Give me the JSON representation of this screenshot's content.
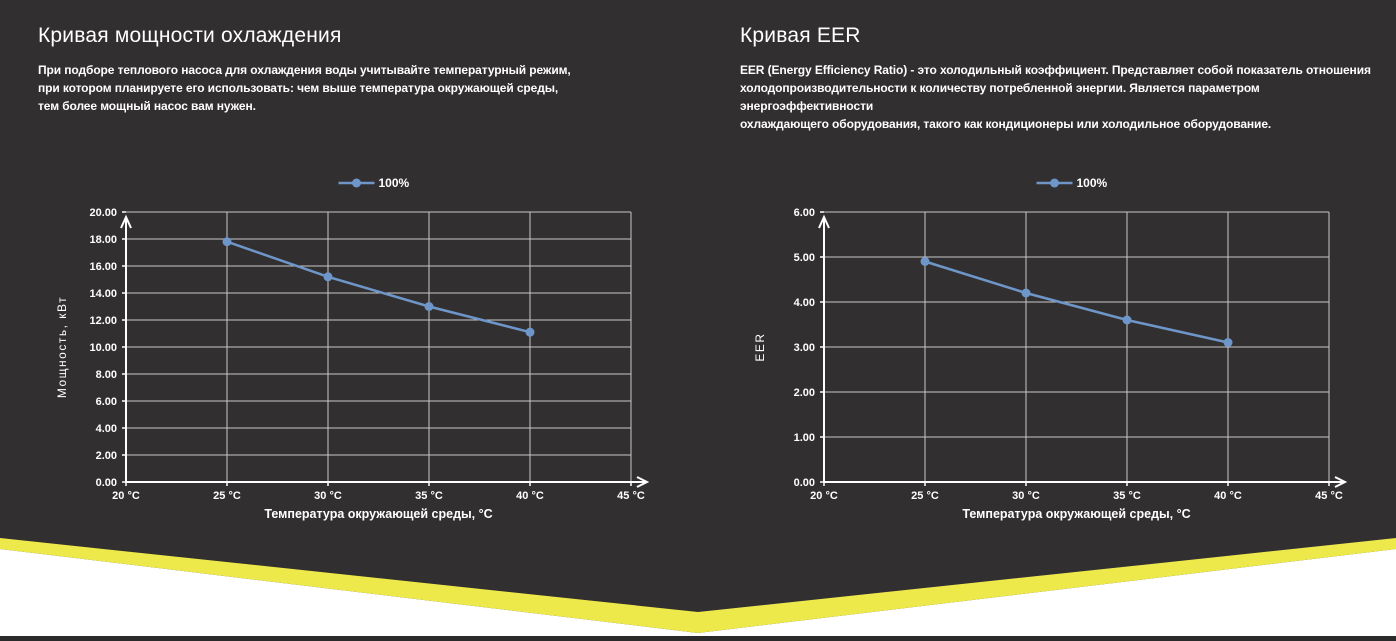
{
  "page": {
    "background_color": "#322f30",
    "accent_yellow": "#ede94b",
    "line_color": "#6e96c8",
    "grid_color": "#c8c8c8",
    "bottom_bar_color": "#2b2a2b",
    "text_color": "#ffffff"
  },
  "panels": [
    {
      "title": "Кривая мощности охлаждения",
      "description": "При подборе теплового насоса для охлаждения воды учитывайте температурный режим,\nпри котором планируете его использовать: чем выше температура окружающей среды,\nтем более мощный насос вам нужен."
    },
    {
      "title": "Кривая EER",
      "description": "EER (Energy Efficiency Ratio) - это холодильный коэффициент. Представляет собой показатель отношения\nхолодопроизводительности к количеству потребленной энергии. Является параметром энергоэффективности\nохлаждающего оборудования, такого как кондиционеры или холодильное оборудование."
    }
  ],
  "chart_data": [
    {
      "type": "line",
      "title": "Кривая мощности охлаждения",
      "legend": "100%",
      "legend_position": "top-center",
      "x": [
        25,
        30,
        35,
        40
      ],
      "series": [
        {
          "name": "100%",
          "values": [
            17.8,
            15.2,
            13.0,
            11.1
          ]
        }
      ],
      "xlabel": "Температура окружающей среды, °C",
      "ylabel": "Мощность, кВт",
      "xlim": [
        20,
        45
      ],
      "ylim": [
        0,
        20
      ],
      "y_tick_step": 2,
      "y_tick_labels": [
        "0.00",
        "2.00",
        "4.00",
        "6.00",
        "8.00",
        "10.00",
        "12.00",
        "14.00",
        "16.00",
        "18.00",
        "20.00"
      ],
      "x_ticks": [
        20,
        25,
        30,
        35,
        40,
        45
      ],
      "x_tick_labels": [
        "20 °C",
        "25 °C",
        "30 °C",
        "35 °C",
        "40 °C",
        "45 °C"
      ],
      "grid": true
    },
    {
      "type": "line",
      "title": "Кривая EER",
      "legend": "100%",
      "legend_position": "top-center",
      "x": [
        25,
        30,
        35,
        40
      ],
      "series": [
        {
          "name": "100%",
          "values": [
            4.9,
            4.2,
            3.6,
            3.1
          ]
        }
      ],
      "xlabel": "Температура окружающей среды, °C",
      "ylabel": "EER",
      "xlim": [
        20,
        45
      ],
      "ylim": [
        0,
        6
      ],
      "y_tick_step": 1,
      "y_tick_labels": [
        "0.00",
        "1.00",
        "2.00",
        "3.00",
        "4.00",
        "5.00",
        "6.00"
      ],
      "x_ticks": [
        20,
        25,
        30,
        35,
        40,
        45
      ],
      "x_tick_labels": [
        "20 °C",
        "25 °C",
        "30 °C",
        "35 °C",
        "40 °C",
        "45 °C"
      ],
      "grid": true
    }
  ]
}
